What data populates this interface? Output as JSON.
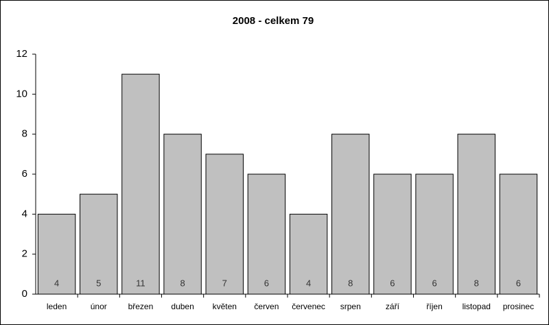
{
  "chart_data": {
    "type": "bar",
    "title": "2008 - celkem 79",
    "categories": [
      "leden",
      "únor",
      "březen",
      "duben",
      "květen",
      "červen",
      "červenec",
      "srpen",
      "září",
      "říjen",
      "listopad",
      "prosinec"
    ],
    "values": [
      4,
      5,
      11,
      8,
      7,
      6,
      4,
      8,
      6,
      6,
      8,
      6
    ],
    "color": "#c0c0c0",
    "ylim": [
      0,
      12
    ],
    "yticks": [
      0,
      2,
      4,
      6,
      8,
      10,
      12
    ],
    "grid": false
  }
}
